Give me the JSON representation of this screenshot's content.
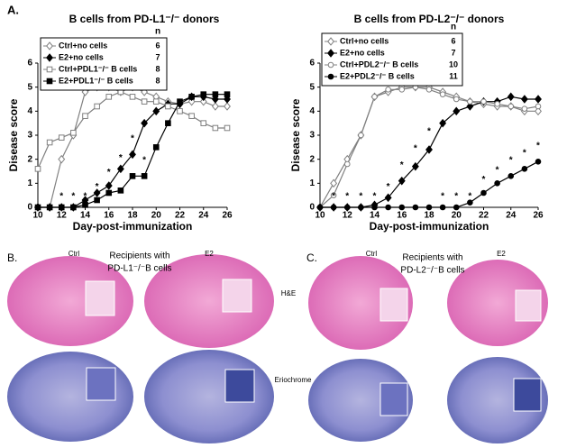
{
  "panel_label": "A.",
  "chart_data": [
    {
      "type": "line",
      "title": "B cells from PD-L1⁻/⁻ donors",
      "x_label": "Day-post-immunization",
      "y_label": "Disease score",
      "x": [
        10,
        11,
        12,
        13,
        14,
        15,
        16,
        17,
        18,
        19,
        20,
        21,
        22,
        23,
        24,
        25,
        26
      ],
      "xlim": [
        10,
        26
      ],
      "xticks": [
        10,
        12,
        14,
        16,
        18,
        20,
        22,
        24,
        26
      ],
      "ylim": [
        0,
        6
      ],
      "yticks": [
        0,
        1,
        2,
        3,
        4,
        5,
        6
      ],
      "n_label": "n",
      "series": [
        {
          "name": "Ctrl+no cells",
          "n": 6,
          "marker": "diamond-open",
          "color": "#808080",
          "values": [
            0,
            0,
            2.0,
            3.0,
            4.8,
            5.0,
            5.0,
            4.8,
            5.0,
            4.8,
            4.6,
            4.4,
            4.3,
            4.4,
            4.4,
            4.2,
            4.2
          ]
        },
        {
          "name": "E2+no cells",
          "n": 7,
          "marker": "diamond",
          "color": "#000000",
          "values": [
            0,
            0,
            0,
            0,
            0.3,
            0.6,
            0.9,
            1.6,
            2.2,
            3.5,
            4.0,
            4.3,
            4.3,
            4.6,
            4.6,
            4.5,
            4.5
          ]
        },
        {
          "name": "Ctrl+PDL1⁻/⁻ B cells",
          "n": 8,
          "marker": "square-open",
          "color": "#808080",
          "values": [
            1.6,
            2.7,
            2.9,
            3.1,
            3.8,
            4.2,
            4.6,
            4.8,
            4.6,
            4.4,
            4.4,
            4.2,
            4.0,
            3.8,
            3.5,
            3.3,
            3.3
          ]
        },
        {
          "name": "E2+PDL1⁻/⁻ B cells",
          "n": 8,
          "marker": "square",
          "color": "#000000",
          "values": [
            0,
            0,
            0,
            0,
            0.1,
            0.3,
            0.6,
            0.7,
            1.3,
            1.3,
            2.5,
            3.5,
            4.4,
            4.6,
            4.7,
            4.7,
            4.7
          ]
        }
      ],
      "annotations": [
        {
          "text": "*",
          "x": 12,
          "y": 0.3
        },
        {
          "text": "*",
          "x": 13,
          "y": 0.3
        },
        {
          "text": "*",
          "x": 14,
          "y": 0.3
        },
        {
          "text": "*",
          "x": 15,
          "y": 0.7
        },
        {
          "text": "*",
          "x": 16,
          "y": 1.3
        },
        {
          "text": "*",
          "x": 17,
          "y": 1.9
        },
        {
          "text": "*",
          "x": 18,
          "y": 2.7
        },
        {
          "text": "*",
          "x": 19,
          "y": 1.8
        }
      ]
    },
    {
      "type": "line",
      "title": "B cells from PD-L2⁻/⁻ donors",
      "x_label": "Day-post-immunization",
      "y_label": "Disease score",
      "x": [
        10,
        11,
        12,
        13,
        14,
        15,
        16,
        17,
        18,
        19,
        20,
        21,
        22,
        23,
        24,
        25,
        26
      ],
      "xlim": [
        10,
        26
      ],
      "xticks": [
        10,
        12,
        14,
        16,
        18,
        20,
        22,
        24,
        26
      ],
      "ylim": [
        0,
        6
      ],
      "yticks": [
        0,
        1,
        2,
        3,
        4,
        5,
        6
      ],
      "n_label": "n",
      "series": [
        {
          "name": "Ctrl+no cells",
          "n": 6,
          "marker": "diamond-open",
          "color": "#808080",
          "values": [
            0,
            1.0,
            2.0,
            3.0,
            4.6,
            4.8,
            5.0,
            5.0,
            5.0,
            4.8,
            4.6,
            4.4,
            4.3,
            4.2,
            4.2,
            4.0,
            4.0
          ]
        },
        {
          "name": "E2+no cells",
          "n": 7,
          "marker": "diamond",
          "color": "#000000",
          "values": [
            0,
            0,
            0,
            0,
            0.1,
            0.4,
            1.1,
            1.7,
            2.4,
            3.5,
            4.0,
            4.2,
            4.4,
            4.4,
            4.6,
            4.5,
            4.5
          ]
        },
        {
          "name": "Ctrl+PDL2⁻/⁻ B cells",
          "n": 10,
          "marker": "circle-open",
          "color": "#808080",
          "values": [
            0,
            0.5,
            1.8,
            3.0,
            4.6,
            4.9,
            4.9,
            5.0,
            4.9,
            4.7,
            4.5,
            4.4,
            4.4,
            4.3,
            4.2,
            4.1,
            4.2
          ]
        },
        {
          "name": "E2+PDL2⁻/⁻ B cells",
          "n": 11,
          "marker": "circle",
          "color": "#000000",
          "values": [
            0,
            0,
            0,
            0,
            0,
            0,
            0,
            0,
            0,
            0,
            0,
            0.2,
            0.6,
            1.0,
            1.3,
            1.6,
            1.9
          ]
        }
      ],
      "annotations": [
        {
          "text": "*",
          "x": 11,
          "y": 0.3
        },
        {
          "text": "*",
          "x": 12,
          "y": 0.3
        },
        {
          "text": "*",
          "x": 13,
          "y": 0.3
        },
        {
          "text": "*",
          "x": 14,
          "y": 0.3
        },
        {
          "text": "*",
          "x": 15,
          "y": 0.7
        },
        {
          "text": "*",
          "x": 16,
          "y": 1.6
        },
        {
          "text": "*",
          "x": 17,
          "y": 2.3
        },
        {
          "text": "*",
          "x": 18,
          "y": 3.0
        },
        {
          "text": "*",
          "x": 19,
          "y": 0.3
        },
        {
          "text": "*",
          "x": 20,
          "y": 0.3
        },
        {
          "text": "*",
          "x": 21,
          "y": 0.3
        },
        {
          "text": "*",
          "x": 22,
          "y": 1.0
        },
        {
          "text": "*",
          "x": 23,
          "y": 1.4
        },
        {
          "text": "*",
          "x": 24,
          "y": 1.8
        },
        {
          "text": "*",
          "x": 25,
          "y": 2.1
        },
        {
          "text": "*",
          "x": 26,
          "y": 2.4
        }
      ]
    }
  ],
  "panels": [
    {
      "label": "B.",
      "caption": [
        "Recipients with",
        "PD-L1⁻/⁻B cells"
      ],
      "columns": [
        "Ctrl",
        "E2"
      ]
    },
    {
      "label": "C.",
      "caption": [
        "Recipients with",
        "PD-L2⁻/⁻B cells"
      ],
      "columns": [
        "Ctrl",
        "E2"
      ]
    }
  ],
  "stain_labels": [
    "H&E",
    "Eriochrome"
  ]
}
